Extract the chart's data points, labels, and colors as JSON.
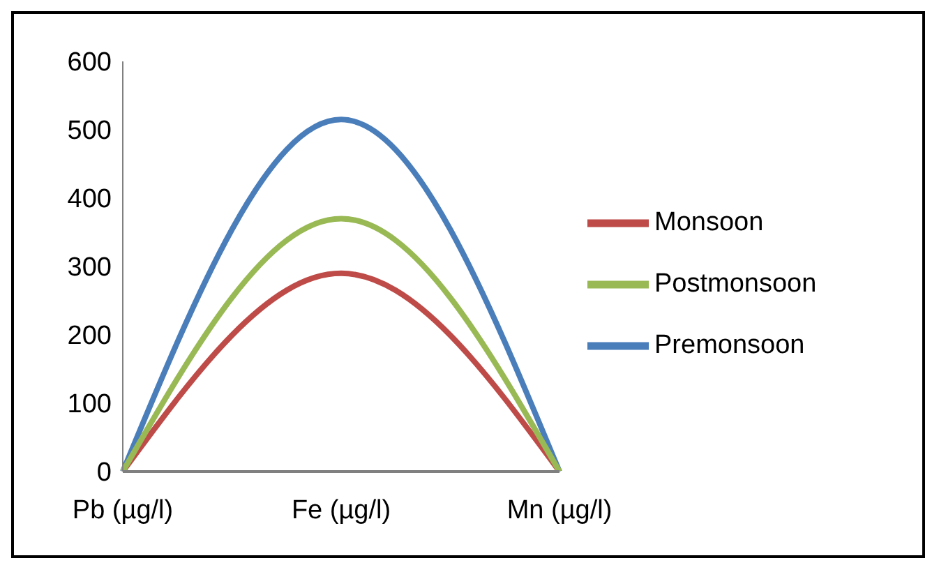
{
  "chart_data": {
    "type": "line",
    "categories": [
      "Pb (µg/l)",
      "Fe (µg/l)",
      "Mn (µg/l)"
    ],
    "series": [
      {
        "name": "Premonsoon",
        "color": "#4a7ebb",
        "values": [
          0,
          515,
          0
        ]
      },
      {
        "name": "Monsoon",
        "color": "#be4b48",
        "values": [
          0,
          290,
          0
        ]
      },
      {
        "name": "Postmonsoon",
        "color": "#98b954",
        "values": [
          0,
          370,
          0
        ]
      }
    ],
    "ylim": [
      0,
      600
    ],
    "yticks": [
      0,
      100,
      200,
      300,
      400,
      500,
      600
    ],
    "grid": false,
    "legend": "right",
    "marker": "none",
    "line_style": "solid"
  }
}
